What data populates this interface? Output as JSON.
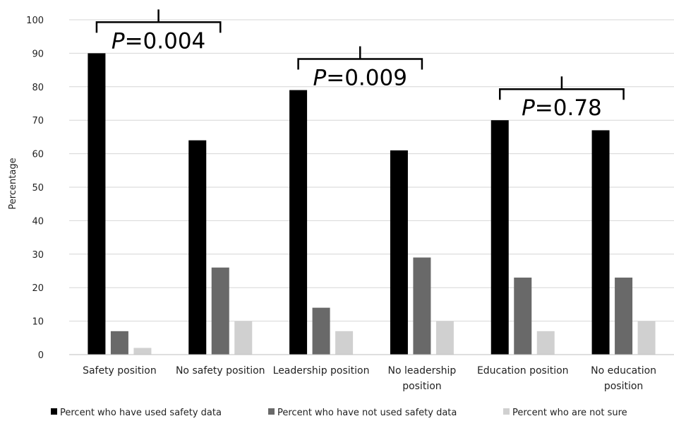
{
  "chart_data": {
    "type": "bar",
    "title": "",
    "xlabel": "",
    "ylabel": "Percentage",
    "ylim": [
      0,
      100
    ],
    "yticks": [
      0,
      10,
      20,
      30,
      40,
      50,
      60,
      70,
      80,
      90,
      100
    ],
    "grid": true,
    "legend_position": "bottom",
    "categories": [
      [
        "Safety position"
      ],
      [
        "No safety position"
      ],
      [
        "Leadership position"
      ],
      [
        "No leadership",
        "position"
      ],
      [
        "Education position"
      ],
      [
        "No education",
        "position"
      ]
    ],
    "series": [
      {
        "name": "Percent who have used safety data",
        "color": "#000000",
        "values": [
          90,
          64,
          79,
          61,
          70,
          67
        ]
      },
      {
        "name": "Percent who have not used safety data",
        "color": "#696969",
        "values": [
          7,
          26,
          14,
          29,
          23,
          23
        ]
      },
      {
        "name": "Percent who are not sure",
        "color": "#d0d0d0",
        "values": [
          2,
          10,
          7,
          10,
          7,
          10
        ]
      }
    ],
    "annotations": [
      {
        "letter": "P",
        "text": "=0.004",
        "categories": [
          0,
          1
        ]
      },
      {
        "letter": "P",
        "text": "=0.009",
        "categories": [
          2,
          3
        ]
      },
      {
        "letter": "P",
        "text": "=0.78",
        "categories": [
          4,
          5
        ]
      }
    ]
  }
}
